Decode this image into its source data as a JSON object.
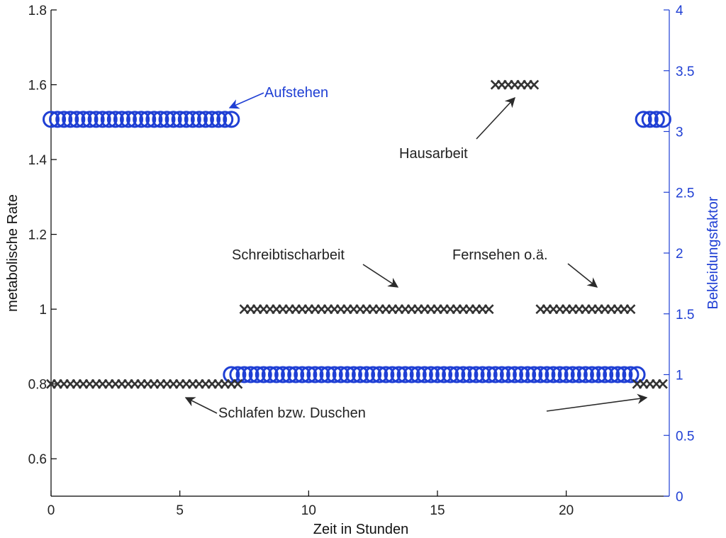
{
  "chart_data": {
    "type": "scatter",
    "title": "",
    "xlabel": "Zeit in Stunden",
    "ylabel_left": "metabolische Rate",
    "ylabel_right": "Bekleidungsfaktor",
    "xlim": [
      0,
      24
    ],
    "ylim_left": [
      0.5,
      1.8
    ],
    "ylim_right": [
      0,
      4
    ],
    "x_ticks": [
      "0",
      "5",
      "10",
      "15",
      "20"
    ],
    "x_tick_values": [
      0,
      5,
      10,
      15,
      20
    ],
    "left_ticks": [
      "0.6",
      "0.8",
      "1",
      "1.2",
      "1.4",
      "1.6",
      "1.8"
    ],
    "left_tick_values": [
      0.6,
      0.8,
      1.0,
      1.2,
      1.4,
      1.6,
      1.8
    ],
    "right_ticks": [
      "0",
      "0.5",
      "1",
      "1.5",
      "2",
      "2.5",
      "3",
      "3.5",
      "4"
    ],
    "right_tick_values": [
      0,
      0.5,
      1,
      1.5,
      2,
      2.5,
      3,
      3.5,
      4
    ],
    "step": 0.25,
    "series": [
      {
        "name": "metabolische Rate",
        "axis": "left",
        "marker": "x",
        "color": "#333333",
        "segments": [
          {
            "x_start": 0,
            "x_end": 7.25,
            "value": 0.8
          },
          {
            "x_start": 7.5,
            "x_end": 17.0,
            "value": 1.0
          },
          {
            "x_start": 17.25,
            "x_end": 18.75,
            "value": 1.6
          },
          {
            "x_start": 19.0,
            "x_end": 22.5,
            "value": 1.0
          },
          {
            "x_start": 22.75,
            "x_end": 23.75,
            "value": 0.8
          }
        ]
      },
      {
        "name": "Bekleidungsfaktor",
        "axis": "right",
        "marker": "o",
        "color": "#1f3fd4",
        "segments": [
          {
            "x_start": 0,
            "x_end": 7.0,
            "value": 3.1
          },
          {
            "x_start": 7.0,
            "x_end": 22.75,
            "value": 1.0
          },
          {
            "x_start": 23.0,
            "x_end": 23.75,
            "value": 3.1
          }
        ]
      }
    ],
    "annotations": [
      {
        "id": "aufstehen",
        "text": "Aufstehen",
        "color": "#1f3fd4"
      },
      {
        "id": "hausarbeit",
        "text": "Hausarbeit",
        "color": "#222222"
      },
      {
        "id": "schreibtisch",
        "text": "Schreibtischarbeit",
        "color": "#222222"
      },
      {
        "id": "fernsehen",
        "text": "Fernsehen o.ä.",
        "color": "#222222"
      },
      {
        "id": "schlafen",
        "text": "Schlafen bzw. Duschen",
        "color": "#222222"
      }
    ],
    "colors": {
      "axis": "#000000",
      "right_axis": "#1f3fd4",
      "arrow": "#2a2a2a"
    }
  }
}
